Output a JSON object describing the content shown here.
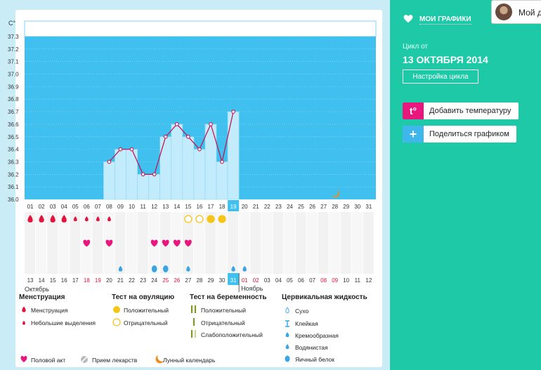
{
  "chart_data": {
    "type": "bar",
    "ylabel": "C°",
    "ylim": [
      36.0,
      37.3
    ],
    "yticks": [
      "37.3",
      "37.2",
      "37.1",
      "37.0",
      "36.9",
      "36.8",
      "36.7",
      "36.6",
      "36.5",
      "36.4",
      "36.3",
      "36.2",
      "36.1",
      "36.0"
    ],
    "days": [
      "01",
      "02",
      "03",
      "04",
      "05",
      "06",
      "07",
      "08",
      "09",
      "10",
      "11",
      "12",
      "13",
      "14",
      "15",
      "16",
      "17",
      "18",
      "19",
      "20",
      "21",
      "22",
      "23",
      "24",
      "25",
      "26",
      "27",
      "28",
      "29",
      "30",
      "31"
    ],
    "dates": [
      "13",
      "14",
      "15",
      "16",
      "17",
      "18",
      "19",
      "20",
      "21",
      "22",
      "23",
      "24",
      "25",
      "26",
      "27",
      "28",
      "29",
      "30",
      "31",
      "01",
      "02",
      "03",
      "04",
      "05",
      "06",
      "07",
      "08",
      "09",
      "10",
      "11",
      "12"
    ],
    "date_red": [
      false,
      false,
      false,
      false,
      false,
      true,
      true,
      false,
      false,
      false,
      false,
      false,
      true,
      true,
      false,
      false,
      false,
      false,
      false,
      true,
      true,
      false,
      false,
      false,
      false,
      false,
      true,
      true,
      false,
      false,
      false
    ],
    "highlight_day_index": 18,
    "temperatures": [
      null,
      null,
      null,
      null,
      null,
      null,
      null,
      36.3,
      36.4,
      36.4,
      36.2,
      36.2,
      36.5,
      36.6,
      36.5,
      36.4,
      36.6,
      36.3,
      36.7,
      null,
      null,
      null,
      null,
      null,
      null,
      null,
      null,
      null,
      null,
      null,
      null
    ],
    "menstruation": [
      "big",
      "big",
      "big",
      "big",
      "small",
      "small",
      "small",
      "small"
    ],
    "ovulation_test": {
      "14": "negative",
      "15": "negative",
      "16": "positive",
      "17": "positive"
    },
    "intercourse_days": [
      5,
      7,
      11,
      12,
      13,
      14
    ],
    "fluid": {
      "8": "creamy",
      "11": "eggwhite",
      "12": "eggwhite",
      "14": "creamy",
      "18": "creamy",
      "19": "creamy"
    },
    "moon_day_index": 27,
    "months": [
      "Октябрь",
      "Ноябрь"
    ]
  },
  "legend": {
    "menstruation": {
      "title": "Менструация",
      "items": [
        "Менструация",
        "Небольшие выделения"
      ]
    },
    "ovulation": {
      "title": "Тест на овуляцию",
      "items": [
        "Положительный",
        "Отрицательный"
      ]
    },
    "pregnancy": {
      "title": "Тест на беременность",
      "items": [
        "Положительный",
        "Отрицательный",
        "Слабоположительный"
      ]
    },
    "fluid": {
      "title": "Цервикальная жидкость",
      "items": [
        "Сухо",
        "Клейкая",
        "Кремообразная",
        "Водянистая",
        "Яичный белок"
      ]
    },
    "bottom": [
      "Половой акт",
      "Прием лекарств",
      "Лунный календарь"
    ]
  },
  "sidebar": {
    "title": "МОИ ГРАФИКИ",
    "user_name": "Мой д",
    "cycle_label": "Цикл от",
    "cycle_date": "13 ОКТЯБРЯ 2014",
    "setup_button": "Настройка цикла",
    "add_temp": "Добавить температуру",
    "add_temp_icon": "t°",
    "share": "Поделиться графиком",
    "share_icon": "+"
  },
  "colors": {
    "sky": "#3fc0ee",
    "bar": "#c2ecfb",
    "line": "#c2185b",
    "accent": "#1ec9a7",
    "red": "#e2143d",
    "pink": "#e8177d",
    "drop": "#3aa4e6",
    "yellow": "#f5c518",
    "orange": "#ef8a1c"
  }
}
